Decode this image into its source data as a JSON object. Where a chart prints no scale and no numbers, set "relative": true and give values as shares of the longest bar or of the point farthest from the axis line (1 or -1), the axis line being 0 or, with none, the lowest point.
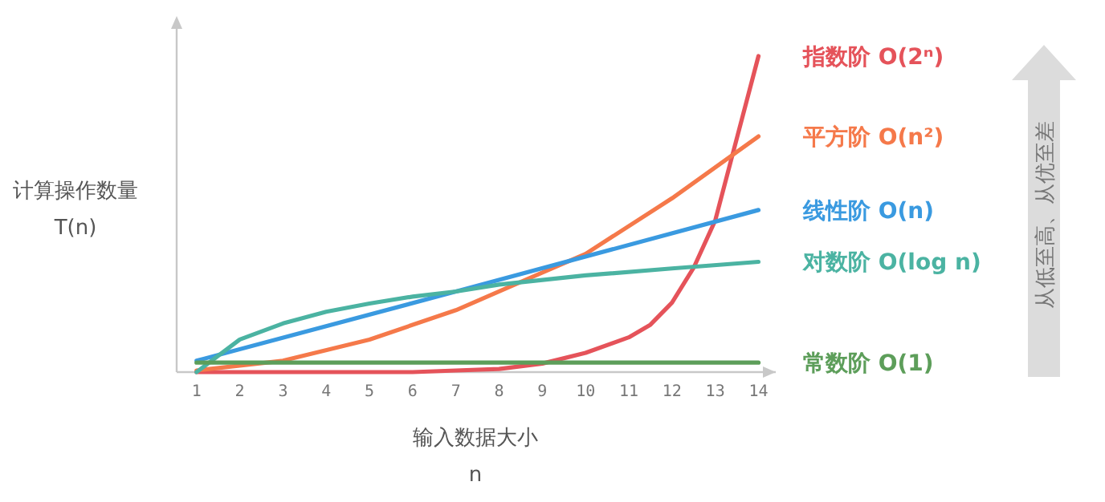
{
  "chart_data": {
    "type": "line",
    "relative": true,
    "xlabel": "输入数据大小\nn",
    "ylabel": "计算操作数量\nT(n)",
    "xlim": [
      0.54,
      14.4
    ],
    "xticks": [
      1,
      2,
      3,
      4,
      5,
      6,
      7,
      8,
      9,
      10,
      11,
      12,
      13,
      14
    ],
    "grid": false,
    "legend": "right",
    "marker": "none",
    "line_style": "solid",
    "annotations": [
      "从低至高、从优至差"
    ],
    "series": [
      {
        "name": "指数阶 O(2ⁿ)",
        "color": "#e5535a",
        "x": [
          1,
          2,
          3,
          4,
          5,
          6,
          7,
          8,
          9,
          10,
          11,
          11.5,
          12,
          12.5,
          13,
          13.5,
          14
        ],
        "values": [
          0,
          0,
          0,
          0,
          0,
          0,
          0.005,
          0.01,
          0.027,
          0.061,
          0.11,
          0.15,
          0.22,
          0.33,
          0.48,
          0.74,
          1
        ]
      },
      {
        "name": "平方阶 O(n²)",
        "color": "#f5794a",
        "x": [
          1,
          3,
          5,
          7,
          9,
          10,
          12,
          14
        ],
        "values": [
          0.005,
          0.036,
          0.103,
          0.196,
          0.315,
          0.374,
          0.55,
          0.746
        ]
      },
      {
        "name": "线性阶 O(n)",
        "color": "#3a9ae0",
        "x": [
          1,
          7,
          14
        ],
        "values": [
          0.036,
          0.255,
          0.513
        ]
      },
      {
        "name": "对数阶 O(log n)",
        "color": "#4bb3a2",
        "x": [
          1,
          2,
          3,
          4,
          5,
          6,
          7,
          8,
          10,
          12,
          14
        ],
        "values": [
          0,
          0.103,
          0.154,
          0.191,
          0.217,
          0.239,
          0.255,
          0.277,
          0.306,
          0.328,
          0.349
        ]
      },
      {
        "name": "常数阶 O(1)",
        "color": "#5d9e5a",
        "x": [
          1,
          14
        ],
        "values": [
          0.03,
          0.03
        ]
      }
    ]
  }
}
